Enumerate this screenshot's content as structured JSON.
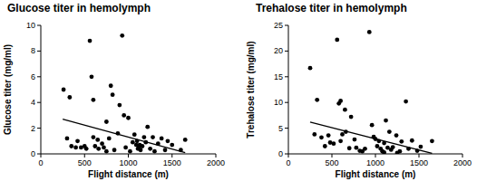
{
  "chart_data": [
    {
      "type": "scatter",
      "title": "Glucose titer in hemolymph",
      "x_label": "Flight distance (m)",
      "y_label": "Glucose titer (mg/ml)",
      "color": "#000000",
      "x": [
        260,
        330,
        300,
        350,
        400,
        420,
        460,
        500,
        520,
        560,
        580,
        600,
        600,
        620,
        650,
        660,
        700,
        720,
        750,
        780,
        800,
        820,
        840,
        880,
        900,
        930,
        950,
        970,
        1000,
        1020,
        1050,
        1070,
        1100,
        1120,
        1130,
        1140,
        1160,
        1180,
        1200,
        1220,
        1250,
        1280,
        1300,
        1340,
        1380,
        1420,
        1450,
        1500,
        1600,
        1650,
        750,
        1090,
        1110
      ],
      "y": [
        5.0,
        4.4,
        1.2,
        0.6,
        0.5,
        1.0,
        0.5,
        0.6,
        0.4,
        8.8,
        6.0,
        4.2,
        1.3,
        0.6,
        1.1,
        0.4,
        0.8,
        0.5,
        2.5,
        1.2,
        5.3,
        4.6,
        0.3,
        1.6,
        3.8,
        9.2,
        3.0,
        0.5,
        2.8,
        0.2,
        0.9,
        1.5,
        1.0,
        0.5,
        0.7,
        0.3,
        0.6,
        1.3,
        0.9,
        2.1,
        0.4,
        1.3,
        0.2,
        0.8,
        1.2,
        0.3,
        1.0,
        0.7,
        0.3,
        1.1,
        0.2,
        0.7,
        0.4
      ],
      "fit": {
        "x": [
          250,
          1650
        ],
        "y": [
          2.7,
          0.1
        ]
      },
      "xlim": [
        0,
        2000
      ],
      "ylim": [
        0,
        10
      ],
      "xticks": [
        0,
        500,
        1000,
        1500,
        2000
      ],
      "yticks": [
        0,
        2,
        4,
        6,
        8,
        10
      ]
    },
    {
      "type": "scatter",
      "title": "Trehalose titer in hemolymph",
      "x_label": "Flight distance (m)",
      "y_label": "Trehalose titer (mg/ml)",
      "color": "#000000",
      "x": [
        250,
        300,
        330,
        380,
        420,
        460,
        480,
        520,
        560,
        580,
        600,
        600,
        620,
        650,
        660,
        700,
        720,
        760,
        780,
        820,
        850,
        880,
        930,
        960,
        980,
        1000,
        1020,
        1040,
        1060,
        1080,
        1100,
        1120,
        1140,
        1160,
        1180,
        1200,
        1240,
        1280,
        1300,
        1350,
        1380,
        1420,
        1480,
        1520,
        1650,
        1100,
        1250
      ],
      "y": [
        16.7,
        3.8,
        10.5,
        3.2,
        1.5,
        3.6,
        2.2,
        2.0,
        22.2,
        9.8,
        10.3,
        2.5,
        3.8,
        8.6,
        4.3,
        1.1,
        7.2,
        2.8,
        1.2,
        0.6,
        0.5,
        1.0,
        23.7,
        5.6,
        3.3,
        2.9,
        1.5,
        2.5,
        1.0,
        0.5,
        2.1,
        6.5,
        1.2,
        4.3,
        0.8,
        1.3,
        3.6,
        0.5,
        2.4,
        10.2,
        1.0,
        2.6,
        0.6,
        1.4,
        2.5,
        0.3,
        0.2
      ],
      "fit": {
        "x": [
          250,
          1650
        ],
        "y": [
          6.2,
          0.1
        ]
      },
      "xlim": [
        0,
        2000
      ],
      "ylim": [
        0,
        25
      ],
      "xticks": [
        0,
        500,
        1000,
        1500,
        2000
      ],
      "yticks": [
        0,
        5,
        10,
        15,
        20,
        25
      ]
    }
  ]
}
